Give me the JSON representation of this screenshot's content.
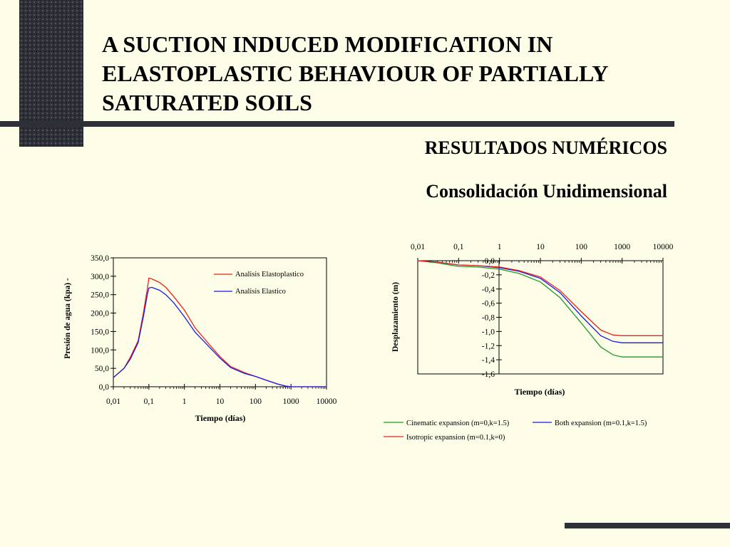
{
  "slide": {
    "title": "A SUCTION INDUCED MODIFICATION IN ELASTOPLASTIC BEHAVIOUR OF PARTIALLY SATURATED SOILS",
    "section": "RESULTADOS NUMÉRICOS",
    "subsection": "Consolidación Unidimensional"
  },
  "colors": {
    "background": "#fdfde8",
    "dark_accent": "#2e3038",
    "red": "#e8231b",
    "blue": "#1a1ae6",
    "green": "#1f9a2a"
  },
  "chart_data": [
    {
      "type": "line",
      "xscale": "log",
      "xlabel": "Tiempo (días)",
      "ylabel": "Presión de agua (kpa) -",
      "xlim": [
        0.01,
        10000
      ],
      "ylim": [
        0,
        350
      ],
      "x_ticks": [
        "0,01",
        "0,1",
        "1",
        "10",
        "100",
        "1000",
        "10000"
      ],
      "y_ticks": [
        "0,0",
        "50,0",
        "100,0",
        "150,0",
        "200,0",
        "250,0",
        "300,0",
        "350,0"
      ],
      "legend": "top-right",
      "series": [
        {
          "name": "Analisis Elastoplastico",
          "color": "#e8231b",
          "x": [
            0.01,
            0.02,
            0.03,
            0.05,
            0.07,
            0.09,
            0.1,
            0.12,
            0.2,
            0.3,
            0.5,
            1,
            2,
            5,
            10,
            20,
            50,
            100,
            200,
            400,
            700,
            1000,
            10000
          ],
          "y": [
            25,
            50,
            80,
            125,
            200,
            265,
            295,
            293,
            283,
            270,
            245,
            208,
            160,
            115,
            82,
            55,
            38,
            28,
            18,
            8,
            2,
            0,
            0
          ]
        },
        {
          "name": "Analisis Elastico",
          "color": "#1a1ae6",
          "x": [
            0.01,
            0.02,
            0.03,
            0.05,
            0.07,
            0.09,
            0.1,
            0.12,
            0.2,
            0.3,
            0.5,
            1,
            2,
            5,
            10,
            20,
            50,
            100,
            200,
            400,
            700,
            1000,
            10000
          ],
          "y": [
            25,
            50,
            75,
            120,
            190,
            250,
            268,
            270,
            262,
            250,
            228,
            190,
            148,
            108,
            78,
            52,
            36,
            28,
            18,
            8,
            2,
            0,
            0
          ]
        }
      ]
    },
    {
      "type": "line",
      "xscale": "log",
      "xlabel": "Tiempo (días)",
      "ylabel": "Desplazamiento (m)",
      "xlim": [
        0.01,
        10000
      ],
      "ylim": [
        -1.6,
        0
      ],
      "x_ticks": [
        "0,01",
        "0,1",
        "1",
        "10",
        "100",
        "1000",
        "10000"
      ],
      "y_ticks": [
        "0,0",
        "-0,2",
        "-0,4",
        "-0,6",
        "-0,8",
        "-1,0",
        "-1,2",
        "-1,4",
        "-1,6"
      ],
      "legend": "bottom",
      "series": [
        {
          "name": "Cinematic expansion (m=0,k=1.5)",
          "color": "#1f9a2a",
          "x": [
            0.01,
            0.03,
            0.1,
            0.3,
            1,
            3,
            10,
            30,
            100,
            300,
            600,
            1000,
            10000
          ],
          "y": [
            0,
            -0.03,
            -0.08,
            -0.09,
            -0.12,
            -0.18,
            -0.3,
            -0.52,
            -0.88,
            -1.22,
            -1.33,
            -1.36,
            -1.36
          ]
        },
        {
          "name": "Both expansion (m=0.1,k=1.5)",
          "color": "#1a1ae6",
          "x": [
            0.01,
            0.03,
            0.1,
            0.3,
            1,
            3,
            10,
            30,
            100,
            300,
            600,
            1000,
            10000
          ],
          "y": [
            0,
            -0.02,
            -0.06,
            -0.07,
            -0.1,
            -0.15,
            -0.25,
            -0.45,
            -0.78,
            -1.06,
            -1.14,
            -1.16,
            -1.16
          ]
        },
        {
          "name": "Isotropic expansion (m=0.1,k=0)",
          "color": "#e8231b",
          "x": [
            0.01,
            0.03,
            0.1,
            0.3,
            1,
            3,
            10,
            30,
            100,
            300,
            600,
            1000,
            10000
          ],
          "y": [
            0,
            -0.02,
            -0.06,
            -0.07,
            -0.09,
            -0.14,
            -0.23,
            -0.42,
            -0.72,
            -0.98,
            -1.05,
            -1.06,
            -1.06
          ]
        }
      ]
    }
  ]
}
